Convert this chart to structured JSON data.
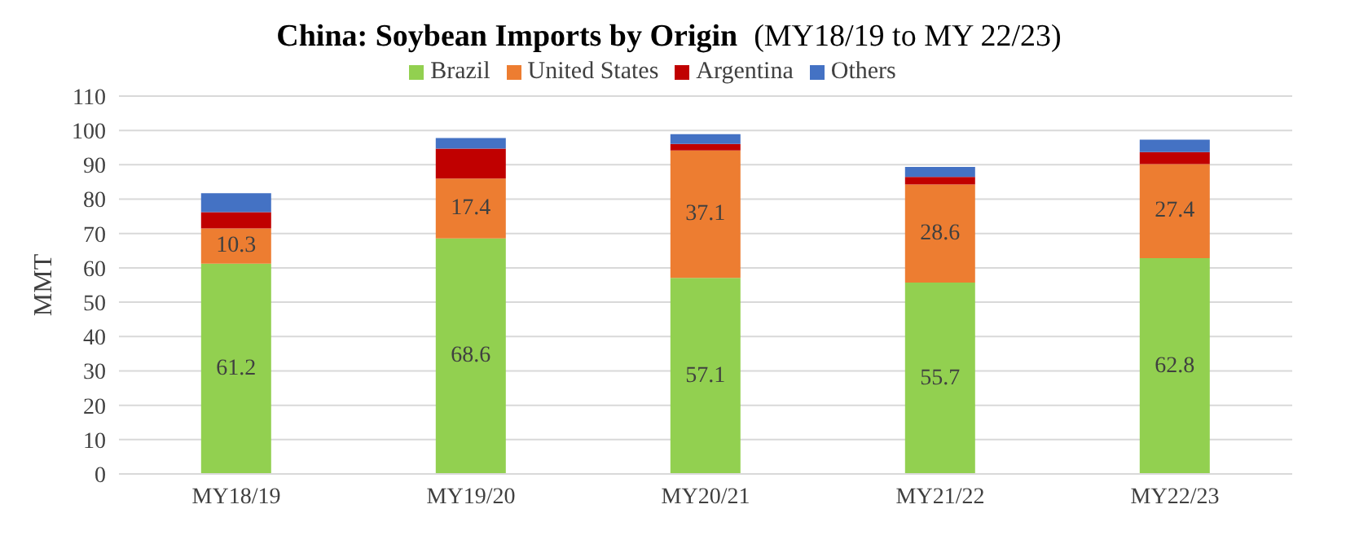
{
  "chart_data": {
    "type": "bar",
    "title": "China: Soybean Imports by Origin",
    "subtitle": "(MY18/19 to MY 22/23)",
    "ylabel": "MMT",
    "categories": [
      "MY18/19",
      "MY19/20",
      "MY20/21",
      "MY21/22",
      "MY22/23"
    ],
    "stacked": true,
    "series": [
      {
        "name": "Brazil",
        "color": "#92d050",
        "values": [
          61.2,
          68.6,
          57.1,
          55.7,
          62.8
        ],
        "value_labels": [
          "61.2",
          "68.6",
          "57.1",
          "55.7",
          "62.8"
        ]
      },
      {
        "name": "United States",
        "color": "#ed7d31",
        "values": [
          10.3,
          17.4,
          37.1,
          28.6,
          27.4
        ],
        "value_labels": [
          "10.3",
          "17.4",
          "37.1",
          "28.6",
          "27.4"
        ]
      },
      {
        "name": "Argentina",
        "color": "#c00000",
        "values": [
          4.7,
          8.7,
          1.9,
          2.2,
          3.5
        ]
      },
      {
        "name": "Others",
        "color": "#4472c4",
        "values": [
          5.5,
          3.1,
          2.8,
          2.9,
          3.6
        ]
      }
    ],
    "ylim": [
      0,
      110
    ],
    "yticks": [
      0,
      10,
      20,
      30,
      40,
      50,
      60,
      70,
      80,
      90,
      100,
      110
    ],
    "grid": "y",
    "legend": "top"
  }
}
